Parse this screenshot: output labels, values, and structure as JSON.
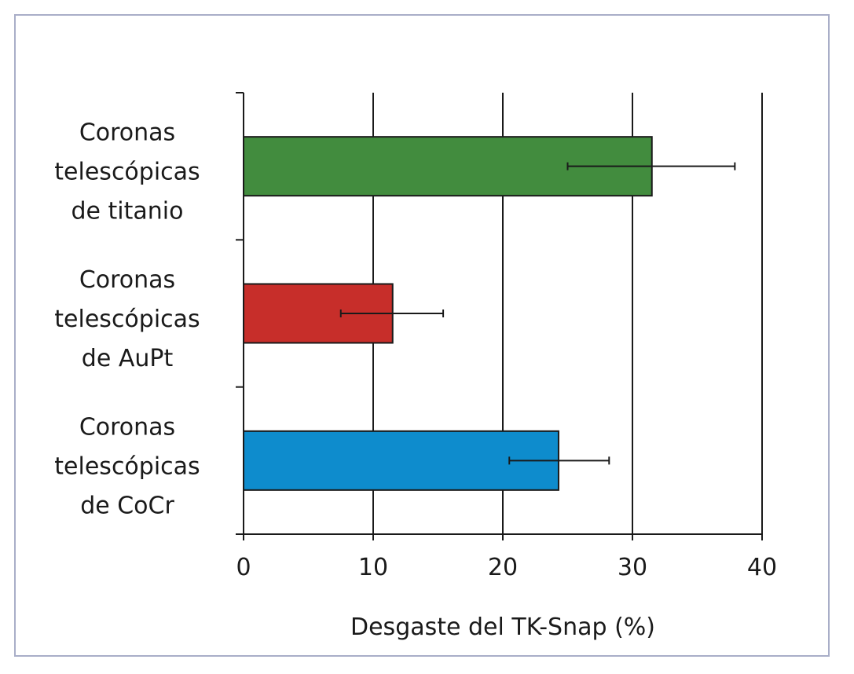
{
  "chart_data": {
    "type": "bar",
    "orientation": "horizontal",
    "title": "",
    "categories": [
      [
        "Coronas",
        "telescópicas",
        "de titanio"
      ],
      [
        "Coronas",
        "telescópicas",
        "de AuPt"
      ],
      [
        "Coronas",
        "telescópicas",
        "de CoCr"
      ]
    ],
    "values": [
      31.5,
      11.5,
      24.3
    ],
    "error_low": [
      25.0,
      7.5,
      20.5
    ],
    "error_high": [
      37.9,
      15.4,
      28.2
    ],
    "colors": [
      "#428c3e",
      "#c72e2a",
      "#0e8ccd"
    ],
    "xlabel": "Desgaste del TK-Snap (%)",
    "ylabel": "",
    "xlim": [
      0,
      40
    ],
    "xticks": [
      0,
      10,
      20,
      30,
      40
    ],
    "grid": "vertical"
  }
}
